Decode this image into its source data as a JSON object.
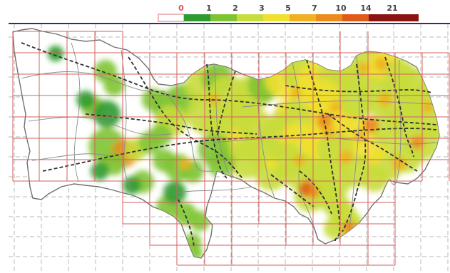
{
  "legend": {
    "labels": [
      "0",
      "1",
      "2",
      "3",
      "5",
      "7",
      "10",
      "14",
      "21"
    ],
    "colors": [
      "#ffffff",
      "#2f9a2f",
      "#7ec432",
      "#c8dc3c",
      "#f0e030",
      "#f0b020",
      "#ec8a1e",
      "#e05a18",
      "#8a1414"
    ]
  },
  "map": {
    "background": "#ffffff",
    "border_color": "#2a2f7a",
    "grid_solid_color": "#d36060",
    "grid_dashed_color": "#b9b9b9",
    "outline_color": "#707070",
    "rail_color": "#303030"
  }
}
